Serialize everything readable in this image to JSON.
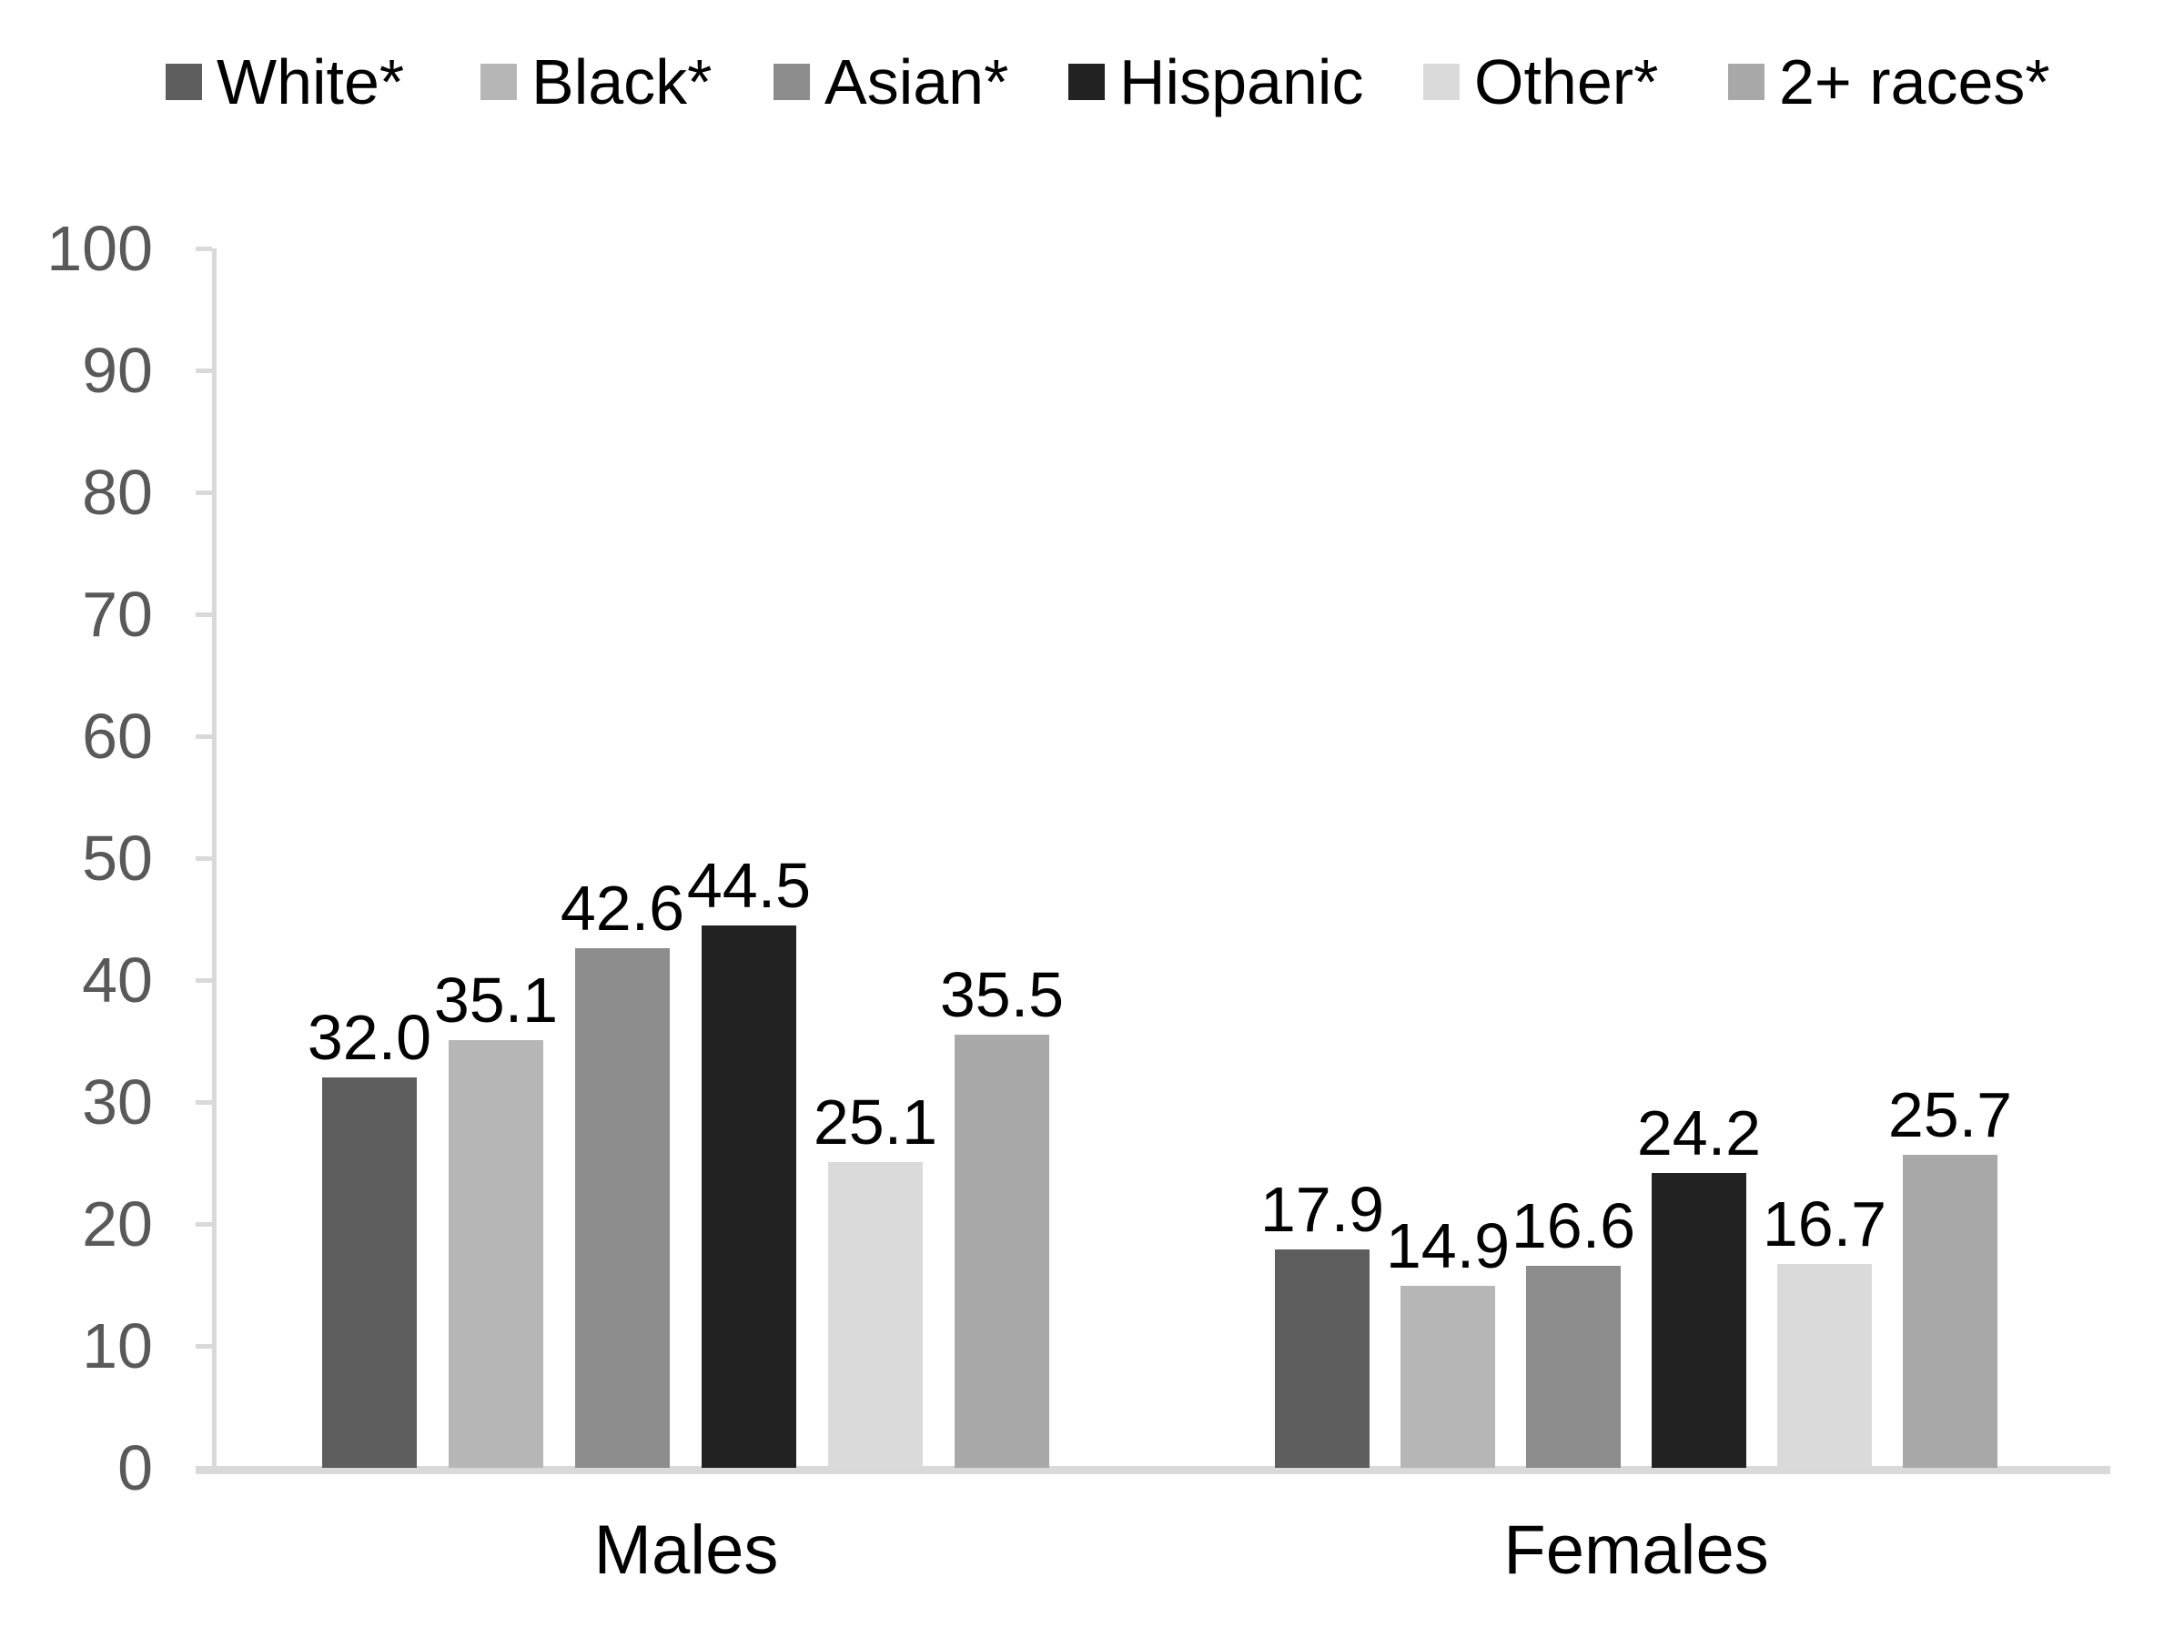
{
  "legend": {
    "items": [
      {
        "label": "White*"
      },
      {
        "label": "Black*"
      },
      {
        "label": "Asian*"
      },
      {
        "label": "Hispanic"
      },
      {
        "label": "Other*"
      },
      {
        "label": "2+ races*"
      }
    ]
  },
  "chart_data": {
    "type": "bar",
    "title": "",
    "xlabel": "",
    "ylabel": "",
    "categories": [
      "Males",
      "Females"
    ],
    "series": [
      {
        "name": "White*",
        "color": "#5e5e5e",
        "values": [
          32.0,
          17.9
        ]
      },
      {
        "name": "Black*",
        "color": "#b6b6b6",
        "values": [
          35.1,
          14.9
        ]
      },
      {
        "name": "Asian*",
        "color": "#8c8c8c",
        "values": [
          42.6,
          16.6
        ]
      },
      {
        "name": "Hispanic",
        "color": "#222222",
        "values": [
          44.5,
          24.2
        ]
      },
      {
        "name": "Other*",
        "color": "#dadada",
        "values": [
          25.1,
          16.7
        ]
      },
      {
        "name": "2+ races*",
        "color": "#a8a8a8",
        "values": [
          35.5,
          25.7
        ]
      }
    ],
    "ylim": [
      0,
      100
    ],
    "yticks": [
      0,
      10,
      20,
      30,
      40,
      50,
      60,
      70,
      80,
      90,
      100
    ],
    "value_label_decimals": 1,
    "grid": "off",
    "legend_position": "top",
    "axis_color": "#d9d9d9",
    "tick_label_color": "#595959",
    "value_label_color": "#000000"
  }
}
